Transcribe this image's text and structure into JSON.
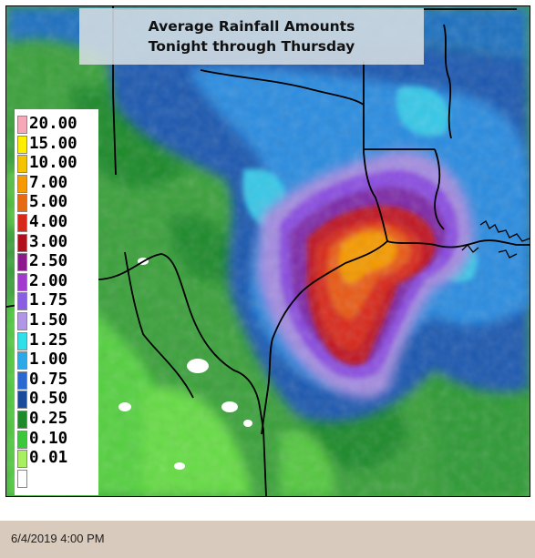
{
  "title": {
    "line1": "Average Rainfall Amounts",
    "line2": "Tonight through Thursday"
  },
  "legend": {
    "items": [
      {
        "label": "20.00",
        "color": "#f7a8b8"
      },
      {
        "label": "15.00",
        "color": "#ffee00"
      },
      {
        "label": "10.00",
        "color": "#f5c400"
      },
      {
        "label": "7.00",
        "color": "#f59a00"
      },
      {
        "label": "5.00",
        "color": "#e86a10"
      },
      {
        "label": "4.00",
        "color": "#d8281c"
      },
      {
        "label": "3.00",
        "color": "#b0101c"
      },
      {
        "label": "2.50",
        "color": "#8c1a8c"
      },
      {
        "label": "2.00",
        "color": "#a23ad0"
      },
      {
        "label": "1.75",
        "color": "#8a5ee0"
      },
      {
        "label": "1.50",
        "color": "#b296e6"
      },
      {
        "label": "1.25",
        "color": "#30e0e8"
      },
      {
        "label": "1.00",
        "color": "#2aa8e8"
      },
      {
        "label": "0.75",
        "color": "#2a6ad0"
      },
      {
        "label": "0.50",
        "color": "#1a4a9a"
      },
      {
        "label": "0.25",
        "color": "#1e8a2a"
      },
      {
        "label": "0.10",
        "color": "#3cc83c"
      },
      {
        "label": "0.01",
        "color": "#a8f060"
      },
      {
        "label": "",
        "color": "#ffffff"
      }
    ]
  },
  "colors": {
    "border_lines": "#000000",
    "coast_lines": "#000000",
    "footer_bg": "#d8cabc"
  },
  "footer": {
    "timestamp": "6/4/2019 4:00 PM"
  }
}
